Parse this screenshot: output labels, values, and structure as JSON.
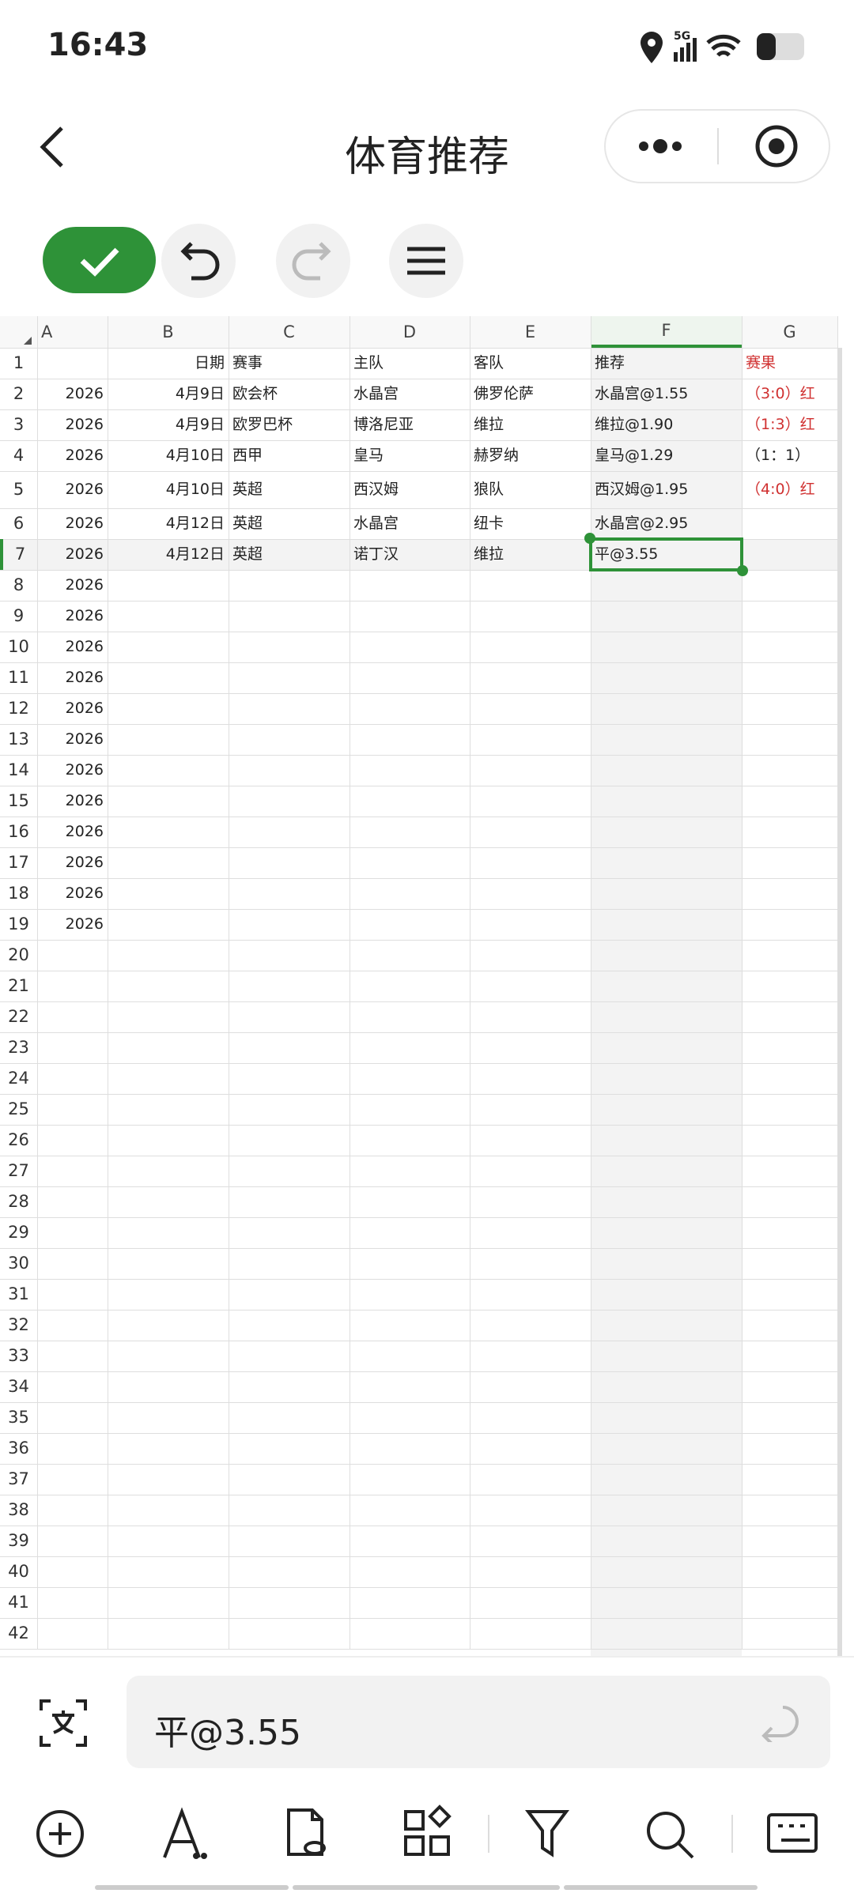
{
  "status_bar": {
    "time": "16:43",
    "network": "5G"
  },
  "header": {
    "title": "体育推荐"
  },
  "sheet": {
    "columns": [
      "A",
      "B",
      "C",
      "D",
      "E",
      "F",
      "G"
    ],
    "rows": [
      {
        "number": 1,
        "B": "日期",
        "C": "赛事",
        "D": "主队",
        "E": "客队",
        "F": "推荐",
        "G": "赛果"
      },
      {
        "number": 2,
        "A": "2026",
        "B": "4月9日",
        "C": "欧会杯",
        "D": "水晶宫",
        "E": "佛罗伦萨",
        "F": "水晶宫@1.55",
        "G": "（3:0）红"
      },
      {
        "number": 3,
        "A": "2026",
        "B": "4月9日",
        "C": "欧罗巴杯",
        "D": "博洛尼亚",
        "E": "维拉",
        "F": "维拉@1.90",
        "G": "（1:3）红"
      },
      {
        "number": 4,
        "A": "2026",
        "B": "4月10日",
        "C": "西甲",
        "D": "皇马",
        "E": "赫罗纳",
        "F": "皇马@1.29",
        "G": "（1：1）"
      },
      {
        "number": 5,
        "A": "2026",
        "B": "4月10日",
        "C": "英超",
        "D": "西汉姆",
        "E": "狼队",
        "F": "西汉姆@1.95",
        "G": "（4:0）红"
      },
      {
        "number": 6,
        "A": "2026",
        "B": "4月12日",
        "C": "英超",
        "D": "水晶宫",
        "E": "纽卡",
        "F": "水晶宫@2.95"
      },
      {
        "number": 7,
        "A": "2026",
        "B": "4月12日",
        "C": "英超",
        "D": "诺丁汉",
        "E": "维拉",
        "F": "平@3.55"
      },
      {
        "number": 8,
        "A": "2026"
      },
      {
        "number": 9,
        "A": "2026"
      },
      {
        "number": 10,
        "A": "2026"
      },
      {
        "number": 11,
        "A": "2026"
      },
      {
        "number": 12,
        "A": "2026"
      },
      {
        "number": 13,
        "A": "2026"
      },
      {
        "number": 14,
        "A": "2026"
      },
      {
        "number": 15,
        "A": "2026"
      },
      {
        "number": 16,
        "A": "2026"
      },
      {
        "number": 17,
        "A": "2026"
      },
      {
        "number": 18,
        "A": "2026"
      },
      {
        "number": 19,
        "A": "2026"
      },
      {
        "number": 20
      },
      {
        "number": 21
      },
      {
        "number": 22
      },
      {
        "number": 23
      },
      {
        "number": 24
      },
      {
        "number": 25
      },
      {
        "number": 26
      },
      {
        "number": 27
      },
      {
        "number": 28
      },
      {
        "number": 29
      },
      {
        "number": 30
      },
      {
        "number": 31
      },
      {
        "number": 32
      },
      {
        "number": 33
      },
      {
        "number": 34
      },
      {
        "number": 35
      },
      {
        "number": 36
      },
      {
        "number": 37
      },
      {
        "number": 38
      },
      {
        "number": 39
      },
      {
        "number": 40
      },
      {
        "number": 41
      },
      {
        "number": 42
      }
    ]
  },
  "formula_bar": {
    "content": "平@3.55"
  }
}
